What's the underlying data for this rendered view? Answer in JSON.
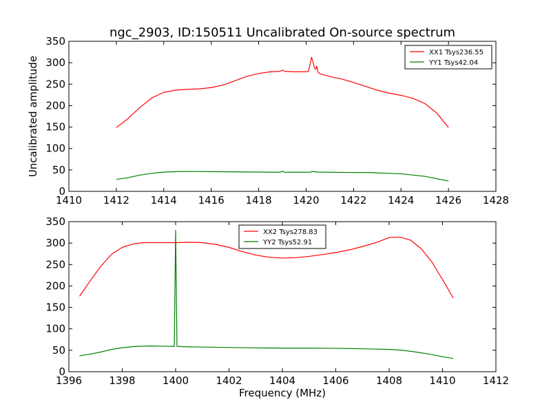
{
  "figure": {
    "title": "ngc_2903, ID:150511 Uncalibrated On-source spectrum"
  },
  "chart_data": [
    {
      "type": "line",
      "xlabel": "",
      "ylabel": "Uncalibrated amplitude",
      "xlim": [
        1410,
        1428
      ],
      "ylim": [
        0,
        350
      ],
      "xticks": [
        1410,
        1412,
        1414,
        1416,
        1418,
        1420,
        1422,
        1424,
        1426,
        1428
      ],
      "yticks": [
        0,
        50,
        100,
        150,
        200,
        250,
        300,
        350
      ],
      "legend_position": "top-right",
      "series": [
        {
          "name": "XX1 Tsys236.55",
          "color": "#ff0000",
          "points": [
            [
              1412.0,
              149
            ],
            [
              1412.5,
              170
            ],
            [
              1413.0,
              196
            ],
            [
              1413.5,
              218
            ],
            [
              1414.0,
              231
            ],
            [
              1414.5,
              236
            ],
            [
              1415.0,
              238
            ],
            [
              1415.5,
              239
            ],
            [
              1416.0,
              242
            ],
            [
              1416.5,
              248
            ],
            [
              1417.0,
              258
            ],
            [
              1417.5,
              268
            ],
            [
              1418.0,
              275
            ],
            [
              1418.5,
              279
            ],
            [
              1418.9,
              280
            ],
            [
              1419.0,
              283
            ],
            [
              1419.1,
              280
            ],
            [
              1419.5,
              279
            ],
            [
              1420.0,
              279
            ],
            [
              1420.1,
              280
            ],
            [
              1420.18,
              300
            ],
            [
              1420.23,
              313
            ],
            [
              1420.3,
              300
            ],
            [
              1420.35,
              288
            ],
            [
              1420.4,
              285
            ],
            [
              1420.45,
              292
            ],
            [
              1420.5,
              278
            ],
            [
              1420.6,
              274
            ],
            [
              1421.0,
              268
            ],
            [
              1421.5,
              262
            ],
            [
              1422.0,
              254
            ],
            [
              1422.5,
              245
            ],
            [
              1423.0,
              236
            ],
            [
              1423.5,
              229
            ],
            [
              1424.0,
              224
            ],
            [
              1424.5,
              217
            ],
            [
              1425.0,
              205
            ],
            [
              1425.5,
              183
            ],
            [
              1426.0,
              149
            ]
          ]
        },
        {
          "name": "YY1 Tsys42.04",
          "color": "#008000",
          "points": [
            [
              1412.0,
              28
            ],
            [
              1412.5,
              32
            ],
            [
              1413.0,
              38
            ],
            [
              1413.5,
              42
            ],
            [
              1414.0,
              45
            ],
            [
              1414.5,
              46
            ],
            [
              1415.0,
              46.5
            ],
            [
              1416.0,
              46
            ],
            [
              1417.0,
              45.5
            ],
            [
              1418.0,
              45
            ],
            [
              1418.9,
              44.5
            ],
            [
              1419.0,
              47
            ],
            [
              1419.1,
              44.5
            ],
            [
              1420.0,
              44.5
            ],
            [
              1420.2,
              45
            ],
            [
              1420.25,
              47
            ],
            [
              1420.3,
              46
            ],
            [
              1420.5,
              45
            ],
            [
              1421.0,
              44.5
            ],
            [
              1422.0,
              44
            ],
            [
              1422.7,
              44
            ],
            [
              1423.0,
              43
            ],
            [
              1424.0,
              41
            ],
            [
              1425.0,
              35
            ],
            [
              1426.0,
              24
            ]
          ]
        }
      ]
    },
    {
      "type": "line",
      "xlabel": "Frequency (MHz)",
      "ylabel": "",
      "xlim": [
        1396,
        1412
      ],
      "ylim": [
        0,
        350
      ],
      "xticks": [
        1396,
        1398,
        1400,
        1402,
        1404,
        1406,
        1408,
        1410,
        1412
      ],
      "yticks": [
        0,
        50,
        100,
        150,
        200,
        250,
        300,
        350
      ],
      "legend_position": "top-center",
      "series": [
        {
          "name": "XX2 Tsys278.83",
          "color": "#ff0000",
          "points": [
            [
              1396.4,
              176
            ],
            [
              1396.8,
              212
            ],
            [
              1397.2,
              246
            ],
            [
              1397.6,
              274
            ],
            [
              1398.0,
              290
            ],
            [
              1398.4,
              298
            ],
            [
              1398.8,
              301
            ],
            [
              1399.5,
              301
            ],
            [
              1400.0,
              301
            ],
            [
              1400.5,
              302
            ],
            [
              1401.0,
              301
            ],
            [
              1401.5,
              297
            ],
            [
              1402.0,
              290
            ],
            [
              1402.5,
              280
            ],
            [
              1403.0,
              272
            ],
            [
              1403.5,
              267
            ],
            [
              1404.0,
              265
            ],
            [
              1404.5,
              266
            ],
            [
              1405.0,
              269
            ],
            [
              1405.5,
              273
            ],
            [
              1406.0,
              278
            ],
            [
              1406.5,
              284
            ],
            [
              1407.0,
              292
            ],
            [
              1407.5,
              301
            ],
            [
              1408.0,
              313
            ],
            [
              1408.4,
              314
            ],
            [
              1408.8,
              307
            ],
            [
              1409.2,
              287
            ],
            [
              1409.6,
              256
            ],
            [
              1410.0,
              215
            ],
            [
              1410.4,
              172
            ]
          ]
        },
        {
          "name": "YY2 Tsys52.91",
          "color": "#008000",
          "points": [
            [
              1396.4,
              37
            ],
            [
              1396.8,
              41
            ],
            [
              1397.2,
              46
            ],
            [
              1397.6,
              52
            ],
            [
              1398.0,
              56
            ],
            [
              1398.5,
              59
            ],
            [
              1399.0,
              60
            ],
            [
              1399.5,
              59.5
            ],
            [
              1399.95,
              59
            ],
            [
              1400.0,
              330
            ],
            [
              1400.05,
              59
            ],
            [
              1400.5,
              58
            ],
            [
              1401.0,
              57.5
            ],
            [
              1402.0,
              56.5
            ],
            [
              1403.0,
              55.5
            ],
            [
              1404.0,
              55
            ],
            [
              1405.0,
              55
            ],
            [
              1406.0,
              54.5
            ],
            [
              1407.0,
              53.5
            ],
            [
              1408.0,
              52
            ],
            [
              1408.5,
              50
            ],
            [
              1409.0,
              46
            ],
            [
              1409.5,
              41
            ],
            [
              1410.0,
              35
            ],
            [
              1410.4,
              31
            ]
          ]
        }
      ]
    }
  ]
}
